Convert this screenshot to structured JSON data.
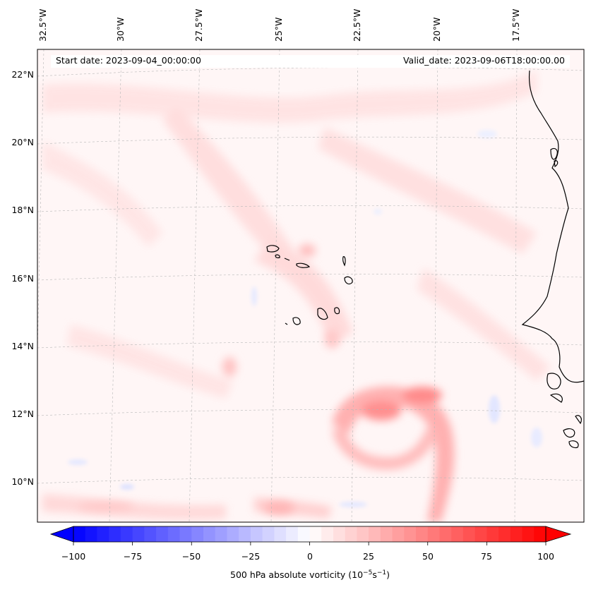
{
  "map": {
    "title_left": "Start date: 2023-09-04_00:00:00",
    "title_right": "Valid_date: 2023-09-06T18:00:00.00",
    "longitude_labels": [
      "32.5°W",
      "30°W",
      "27.5°W",
      "25°W",
      "22.5°W",
      "20°W",
      "17.5°W"
    ],
    "latitude_labels": [
      "22°N",
      "20°N",
      "18°N",
      "16°N",
      "14°N",
      "12°N",
      "10°N"
    ],
    "field": "500 hPa absolute vorticity",
    "colormap": "bwr"
  },
  "colorbar": {
    "label_prefix": "500 hPa absolute vorticity (10",
    "label_exp1": "−5",
    "label_mid": "s",
    "label_exp2": "−1",
    "label_suffix": ")",
    "ticks": [
      "−100",
      "−75",
      "−50",
      "−25",
      "0",
      "25",
      "50",
      "75",
      "100"
    ],
    "min": -100,
    "max": 100,
    "low_color": "#0000ff",
    "mid_color": "#ffffff",
    "high_color": "#ff0000"
  }
}
